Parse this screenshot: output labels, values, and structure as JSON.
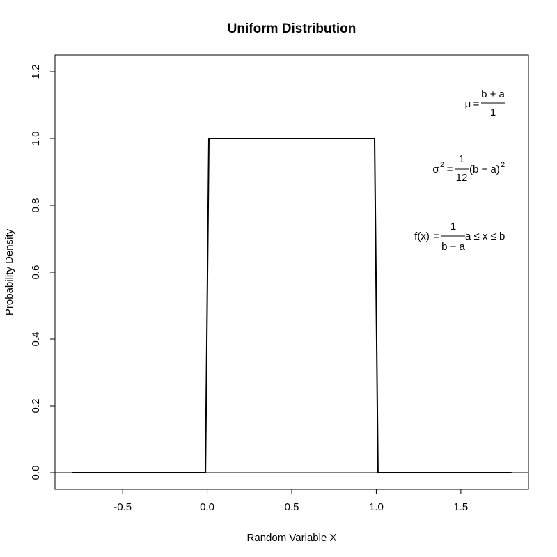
{
  "chart_data": {
    "type": "line",
    "title": "Uniform Distribution",
    "xlabel": "Random Variable X",
    "ylabel": "Probability Density",
    "xlim": [
      -0.9,
      1.9
    ],
    "ylim": [
      -0.05,
      1.25
    ],
    "x_ticks": [
      "-0.5",
      "0.0",
      "0.5",
      "1.0",
      "1.5"
    ],
    "x_tick_values": [
      -0.5,
      0.0,
      0.5,
      1.0,
      1.5
    ],
    "y_ticks": [
      "0.0",
      "0.2",
      "0.4",
      "0.6",
      "0.8",
      "1.0",
      "1.2"
    ],
    "y_tick_values": [
      0.0,
      0.2,
      0.4,
      0.6,
      0.8,
      1.0,
      1.2
    ],
    "series": [
      {
        "x": [
          -0.8,
          -0.01,
          0.01,
          0.99,
          1.01,
          1.8
        ],
        "y": [
          0,
          0,
          1,
          1,
          0,
          0
        ]
      }
    ],
    "hline": 0,
    "grid": false,
    "annotations": {
      "mean": {
        "lhs": "μ",
        "eq": "=",
        "num": "b + a",
        "den": "1"
      },
      "variance": {
        "lhs": "σ",
        "sup": "2",
        "eq": "=",
        "num": "1",
        "den": "12",
        "rest": "(b − a)",
        "rest_sup": "2"
      },
      "pdf": {
        "lhs": "f(x)",
        "eq": "=",
        "num": "1",
        "den": "b − a",
        "rest": "a ≤ x ≤ b"
      }
    }
  }
}
